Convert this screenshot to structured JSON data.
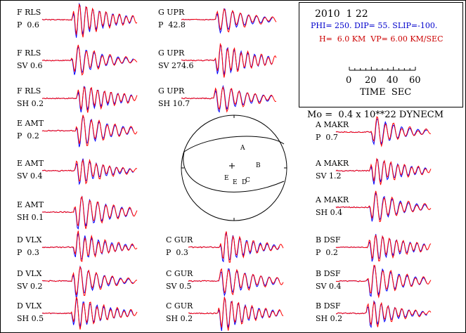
{
  "header": {
    "date": "2010  1 22",
    "mechanism": "PHI= 250. DIP= 55. SLIP=-100.",
    "depth_velocity": "H=  6.0 KM  VP= 6.00 KM/SEC"
  },
  "time_scale": {
    "ticks": [
      "0",
      "20",
      "40",
      "60"
    ],
    "title": "TIME  SEC"
  },
  "moment": "Mo =  0.4 x 10**22 DYNECM",
  "colors": {
    "observed": "#0000ff",
    "synthetic": "#ff0000",
    "text": "#000000"
  },
  "waveforms": [
    {
      "station": "F RLS",
      "phase": "P  0.6"
    },
    {
      "station": "F RLS",
      "phase": "SV 0.6"
    },
    {
      "station": "F RLS",
      "phase": "SH 0.2"
    },
    {
      "station": "E AMT",
      "phase": "P  0.2"
    },
    {
      "station": "E AMT",
      "phase": "SV 0.4"
    },
    {
      "station": "E AMT",
      "phase": "SH 0.1"
    },
    {
      "station": "D VLX",
      "phase": "P  0.3"
    },
    {
      "station": "D VLX",
      "phase": "SV 0.2"
    },
    {
      "station": "D VLX",
      "phase": "SH 0.5"
    },
    {
      "station": "G UPR",
      "phase": "P  42.8"
    },
    {
      "station": "G UPR",
      "phase": "SV 274.6"
    },
    {
      "station": "G UPR",
      "phase": "SH 10.7"
    },
    {
      "station": "C GUR",
      "phase": "P  0.3"
    },
    {
      "station": "C GUR",
      "phase": "SV 0.5"
    },
    {
      "station": "C GUR",
      "phase": "SH 0.2"
    },
    {
      "station": "A MAKR",
      "phase": "P  0.7"
    },
    {
      "station": "A MAKR",
      "phase": "SV 1.2"
    },
    {
      "station": "A MAKR",
      "phase": "SH 0.4"
    },
    {
      "station": "B DSF",
      "phase": "P  0.2"
    },
    {
      "station": "B DSF",
      "phase": "SV 0.4"
    },
    {
      "station": "B DSF",
      "phase": "SH 0.2"
    }
  ],
  "stereonet": {
    "station_codes": [
      "A",
      "B",
      "C",
      "D",
      "E",
      "E"
    ]
  }
}
